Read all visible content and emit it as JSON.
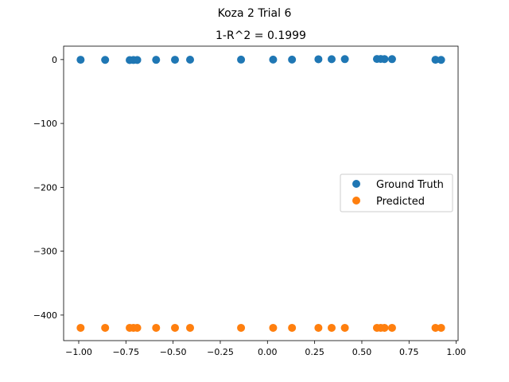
{
  "chart_data": {
    "type": "scatter",
    "suptitle": "Koza 2 Trial 6",
    "title": "1-R^2 = 0.1999",
    "xlabel": "",
    "ylabel": "",
    "xlim": [
      -1.08,
      1.01
    ],
    "ylim": [
      -440,
      21
    ],
    "grid": false,
    "legend_position": "center-right",
    "x_ticks": [
      -1.0,
      -0.75,
      -0.5,
      -0.25,
      0.0,
      0.25,
      0.5,
      0.75,
      1.0
    ],
    "x_tick_labels": [
      "−1.00",
      "−0.75",
      "−0.50",
      "−0.25",
      "0.00",
      "0.25",
      "0.50",
      "0.75",
      "1.00"
    ],
    "y_ticks": [
      0,
      -100,
      -200,
      -300,
      -400
    ],
    "y_tick_labels": [
      "0",
      "−100",
      "−200",
      "−300",
      "−400"
    ],
    "series": [
      {
        "name": "Ground Truth",
        "color": "#1f77b4",
        "x": [
          -0.99,
          -0.86,
          -0.73,
          -0.71,
          -0.69,
          -0.59,
          -0.49,
          -0.41,
          -0.14,
          0.03,
          0.13,
          0.27,
          0.34,
          0.41,
          0.58,
          0.6,
          0.62,
          0.66,
          0.89,
          0.92
        ],
        "y": [
          -0.3,
          -0.5,
          -0.8,
          -0.7,
          -0.6,
          -0.4,
          -0.3,
          -0.2,
          -0.1,
          0.0,
          0.0,
          0.5,
          0.6,
          0.7,
          0.9,
          0.9,
          0.8,
          0.7,
          -0.3,
          -0.5
        ]
      },
      {
        "name": "Predicted",
        "color": "#ff7f0e",
        "x": [
          -0.99,
          -0.86,
          -0.73,
          -0.71,
          -0.69,
          -0.59,
          -0.49,
          -0.41,
          -0.14,
          0.03,
          0.13,
          0.27,
          0.34,
          0.41,
          0.58,
          0.6,
          0.62,
          0.66,
          0.89,
          0.92
        ],
        "y": [
          -420,
          -420,
          -420,
          -420,
          -420,
          -420,
          -420,
          -420,
          -420,
          -420,
          -420,
          -420,
          -420,
          -420,
          -420,
          -420,
          -420,
          -420,
          -420,
          -420
        ]
      }
    ]
  }
}
